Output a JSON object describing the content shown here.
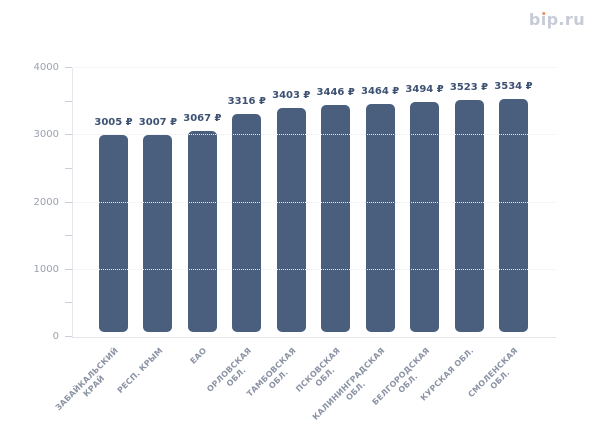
{
  "logo": {
    "text": "bip.ru",
    "part1": "b",
    "i_stem": "ı",
    "part3": "p.ru"
  },
  "colors": {
    "bar": "#4a5e7e",
    "value_label": "#3d5172",
    "axis_line": "#e3e6eb",
    "grid_line": "#e9ebef",
    "tick": "#c9ced8",
    "y_label": "#9aa1ae",
    "x_label": "#8b93a4",
    "logo_text": "#c7cbd8",
    "logo_dot": "#f0895e",
    "background": "#ffffff"
  },
  "chart_data": {
    "type": "bar",
    "title": "",
    "categories": [
      "ЗАБАЙКАЛЬСКИЙ КРАЙ",
      "РЕСП. КРЫМ",
      "ЕАО",
      "ОРЛОВСКАЯ ОБЛ.",
      "ТАМБОВСКАЯ ОБЛ.",
      "ПСКОВСКАЯ ОБЛ.",
      "КАЛИНИНГРАДСКАЯ ОБЛ.",
      "БЕЛГОРОДСКАЯ ОБЛ.",
      "КУРСКАЯ ОБЛ.",
      "СМОЛЕНСКАЯ ОБЛ."
    ],
    "category_label_lines": [
      [
        "ЗАБАЙКАЛЬСКИЙ",
        "КРАЙ"
      ],
      [
        "РЕСП. КРЫМ"
      ],
      [
        "ЕАО"
      ],
      [
        "ОРЛОВСКАЯ",
        "ОБЛ."
      ],
      [
        "ТАМБОВСКАЯ",
        "ОБЛ."
      ],
      [
        "ПСКОВСКАЯ",
        "ОБЛ."
      ],
      [
        "КАЛИНИНГРАДСКАЯ",
        "ОБЛ."
      ],
      [
        "БЕЛГОРОДСКАЯ",
        "ОБЛ."
      ],
      [
        "КУРСКАЯ ОБЛ."
      ],
      [
        "СМОЛЕНСКАЯ",
        "ОБЛ."
      ]
    ],
    "values": [
      3005,
      3007,
      3067,
      3316,
      3403,
      3446,
      3464,
      3494,
      3523,
      3534
    ],
    "value_suffix": " ₽",
    "xlabel": "",
    "ylabel": "",
    "ylim": [
      0,
      4000
    ],
    "y_ticks": [
      0,
      1000,
      2000,
      3000,
      4000
    ],
    "y_minor_tick_step": 500,
    "grid": "horizontal-dotted",
    "legend": "none",
    "bar_corner_radius": 5
  }
}
